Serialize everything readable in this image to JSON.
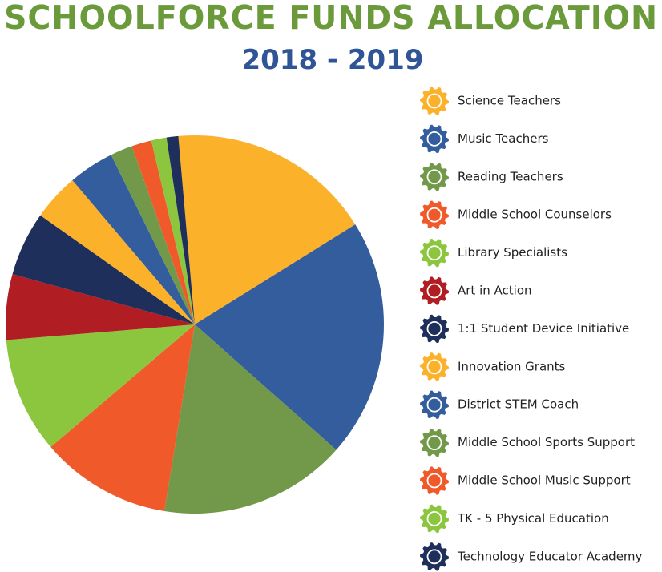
{
  "chart_data": {
    "type": "pie",
    "title": "SCHOOLFORCE FUNDS ALLOCATION",
    "subtitle": "2018 - 2019",
    "categories": [
      "Science Teachers",
      "Music Teachers",
      "Reading Teachers",
      "Middle School Counselors",
      "Library Specialists",
      "Art in Action",
      "1:1 Student Device Initiative",
      "Innovation Grants",
      "District STEM Coach",
      "Middle School Sports Support",
      "Middle School Music Support",
      "TK - 5 Physical Education",
      "Technology Educator Academy"
    ],
    "values": [
      17.5,
      20.4,
      16,
      11.2,
      9.9,
      5.6,
      5.5,
      4,
      3.9,
      1.9,
      1.7,
      1.3,
      1
    ],
    "colors": [
      "#fbb12a",
      "#335d9d",
      "#72994a",
      "#f05a2a",
      "#8cc63f",
      "#b01e24",
      "#1f2f5c",
      "#fbb12a",
      "#335d9d",
      "#72994a",
      "#f05a2a",
      "#8cc63f",
      "#1f2f5c"
    ]
  }
}
